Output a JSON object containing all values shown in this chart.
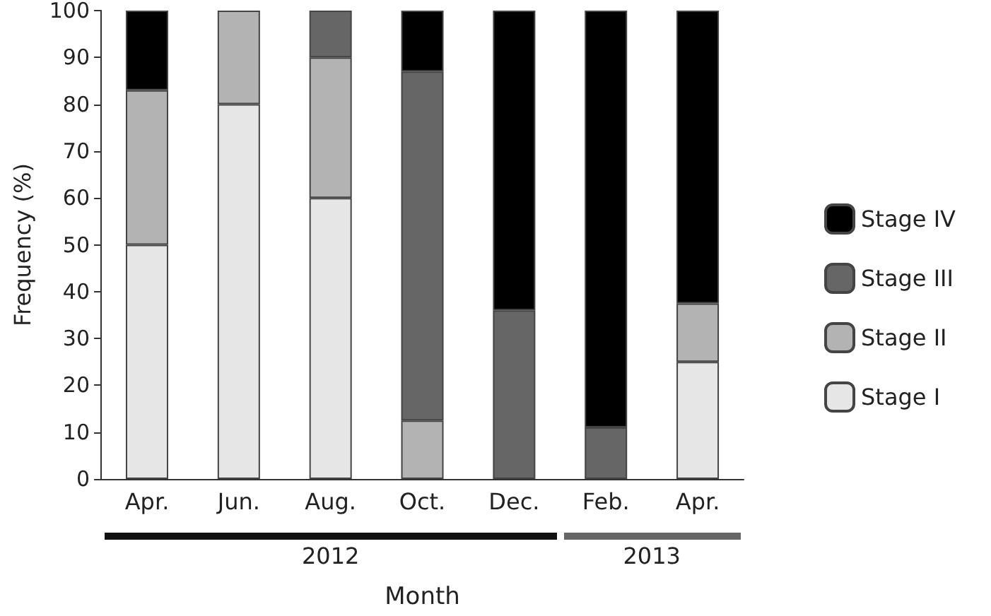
{
  "chart_data": {
    "type": "bar",
    "stacked": true,
    "xlabel": "Month",
    "ylabel": "Frequency (%)",
    "categories": [
      "Apr.",
      "Jun.",
      "Aug.",
      "Oct.",
      "Dec.",
      "Feb.",
      "Apr."
    ],
    "series": [
      {
        "name": "Stage I",
        "color": "#e6e6e6",
        "values": [
          50,
          80,
          60,
          null,
          null,
          null,
          25
        ]
      },
      {
        "name": "Stage II",
        "color": "#b3b3b3",
        "values": [
          33,
          20,
          30,
          12.5,
          null,
          null,
          12.5
        ]
      },
      {
        "name": "Stage III",
        "color": "#666666",
        "values": [
          null,
          null,
          10,
          74.5,
          36,
          11,
          null
        ]
      },
      {
        "name": "Stage IV",
        "color": "#000000",
        "values": [
          17,
          null,
          null,
          13,
          64,
          89,
          62.5
        ]
      }
    ],
    "ylim": [
      0,
      100
    ],
    "yticks": [
      0,
      10,
      20,
      30,
      40,
      50,
      60,
      70,
      80,
      90,
      100
    ],
    "grid": false,
    "legend": "right",
    "annotations": [
      "2012",
      "2013"
    ]
  }
}
